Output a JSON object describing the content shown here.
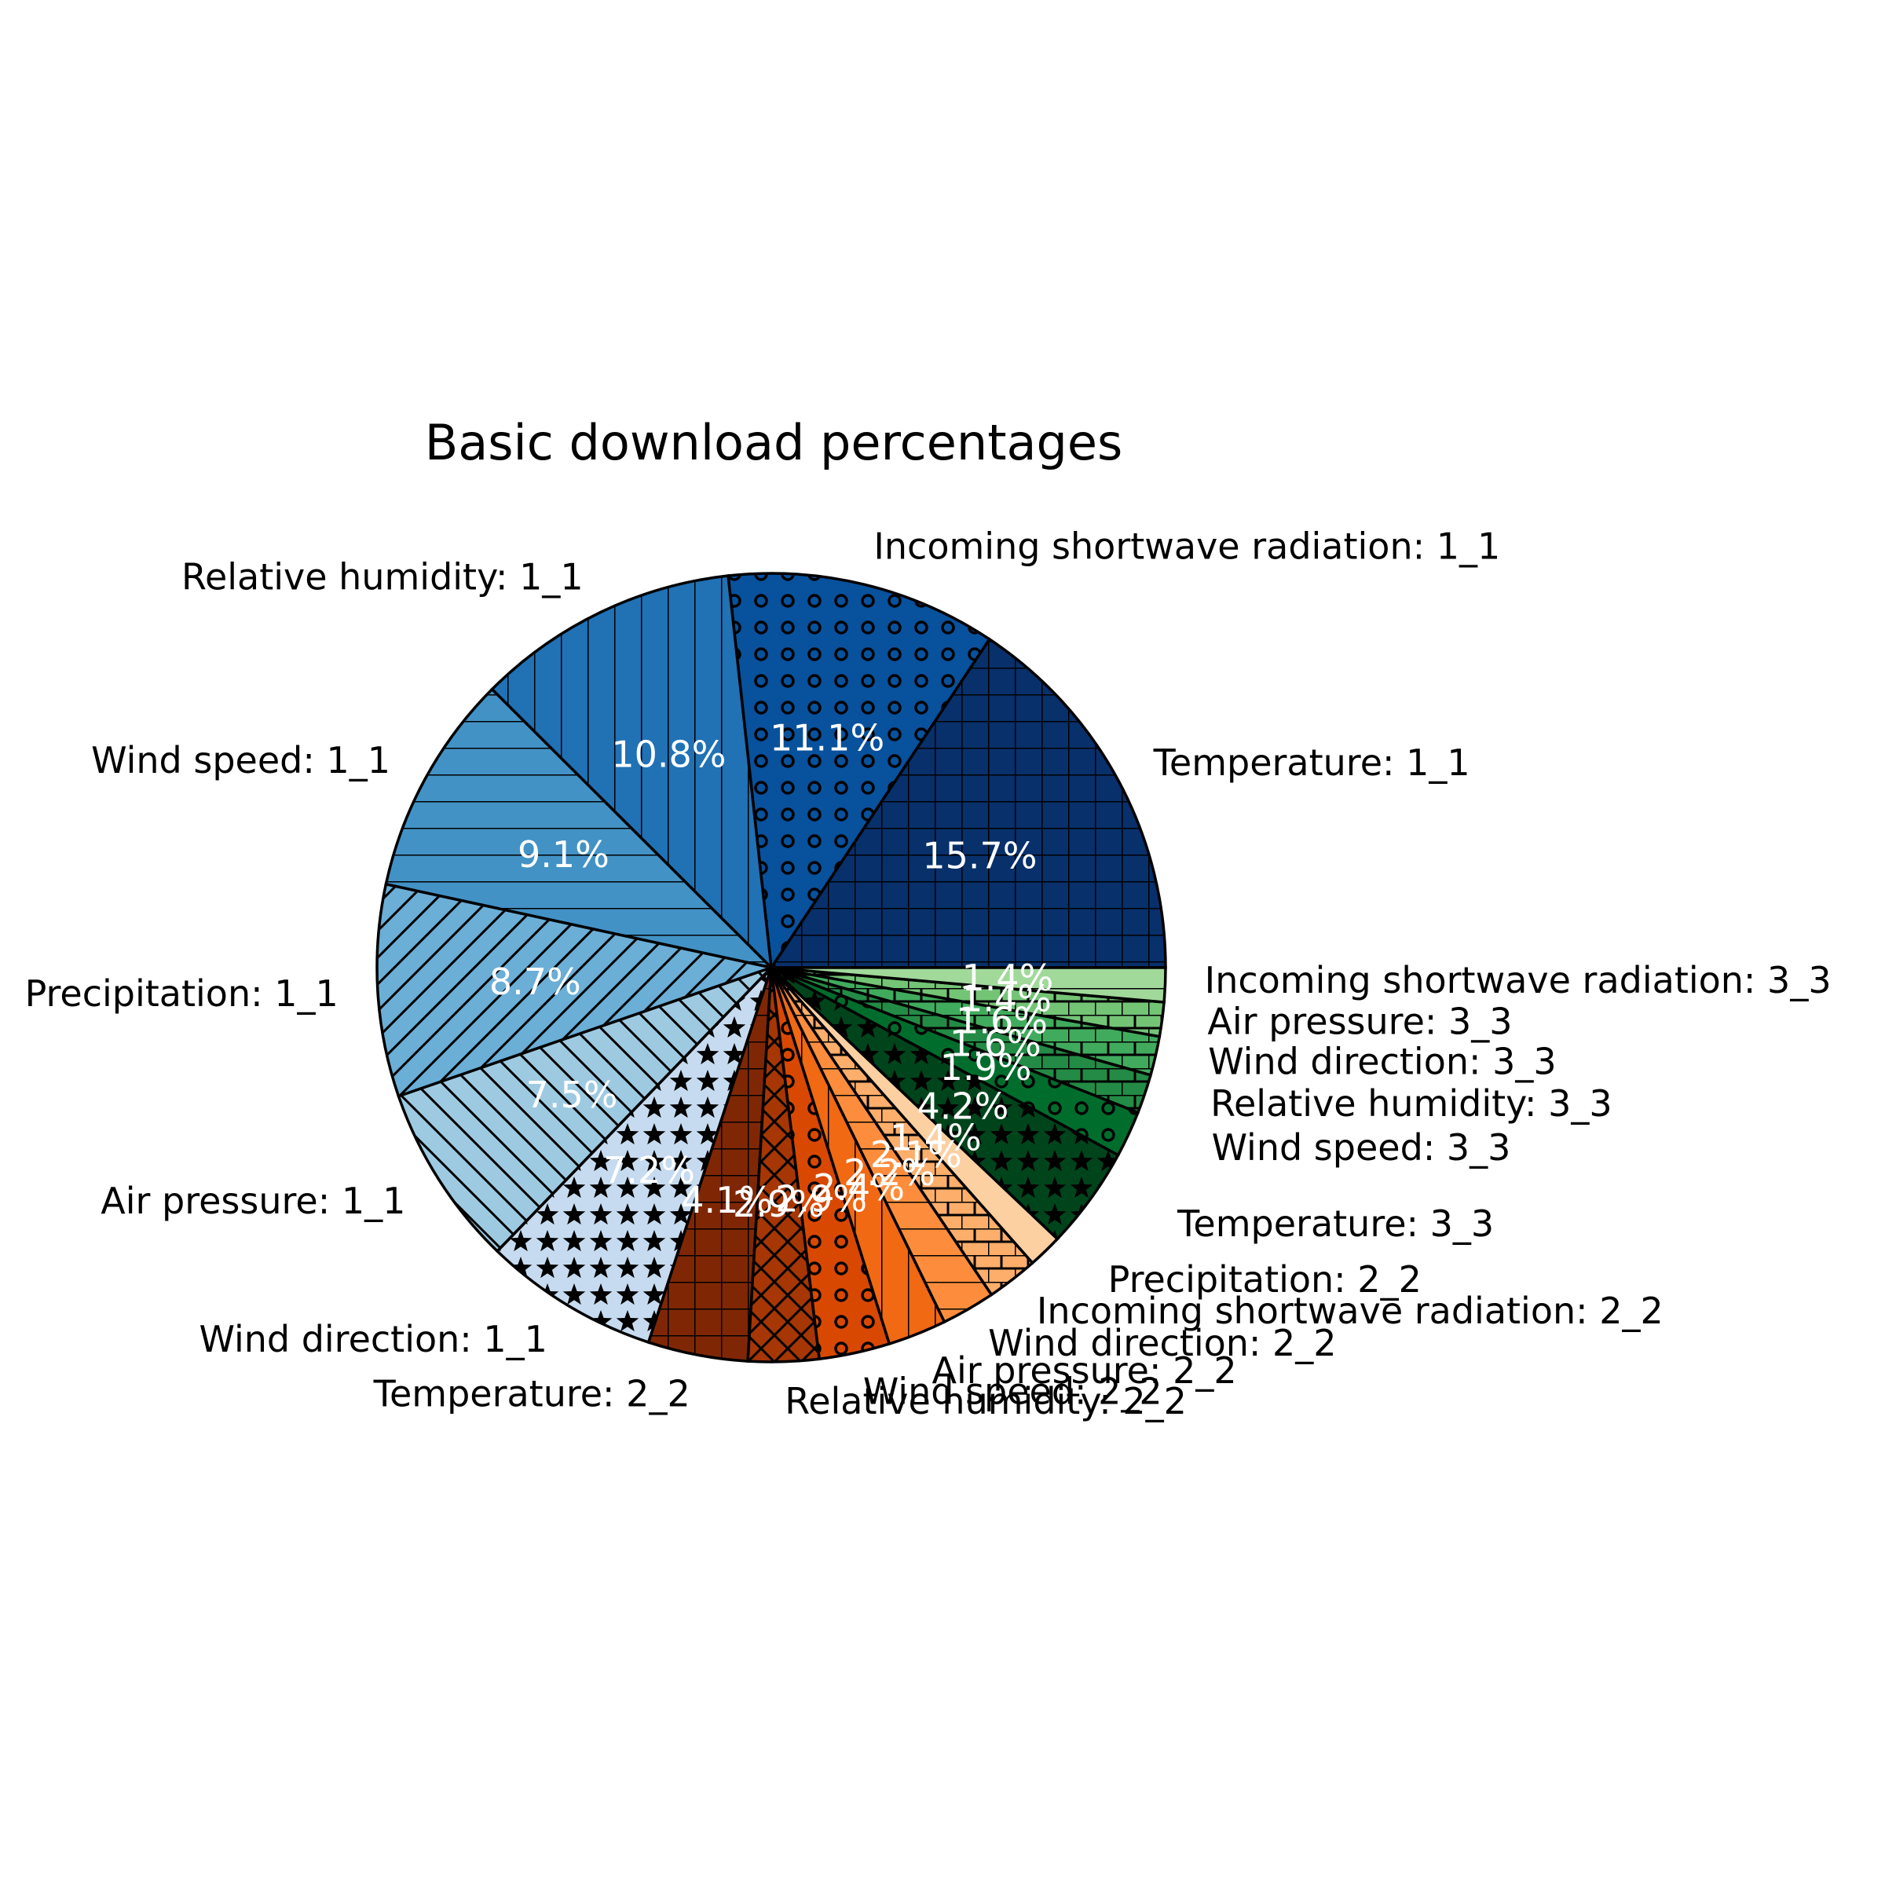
{
  "chart_data": {
    "type": "pie",
    "title": "Basic download percentages",
    "start_angle_deg": 0,
    "direction": "counterclockwise",
    "slices": [
      {
        "label": "Temperature: 1_1",
        "value": 15.7,
        "pct_label": "15.7%",
        "color": "#08306b",
        "hatch": "grid"
      },
      {
        "label": "Incoming shortwave radiation: 1_1",
        "value": 11.1,
        "pct_label": "11.1%",
        "color": "#08519c",
        "hatch": "circles"
      },
      {
        "label": "Relative humidity: 1_1",
        "value": 10.8,
        "pct_label": "10.8%",
        "color": "#2171b5",
        "hatch": "vertical"
      },
      {
        "label": "Wind speed: 1_1",
        "value": 9.1,
        "pct_label": "9.1%",
        "color": "#4292c6",
        "hatch": "horizontal"
      },
      {
        "label": "Precipitation: 1_1",
        "value": 8.7,
        "pct_label": "8.7%",
        "color": "#6baed6",
        "hatch": "diagonal"
      },
      {
        "label": "Air pressure: 1_1",
        "value": 7.5,
        "pct_label": "7.5%",
        "color": "#9ecae1",
        "hatch": "backdiagonal"
      },
      {
        "label": "Wind direction: 1_1",
        "value": 7.2,
        "pct_label": "7.2%",
        "color": "#c6dbef",
        "hatch": "stars"
      },
      {
        "label": "Temperature: 2_2",
        "value": 4.1,
        "pct_label": "4.1%",
        "color": "#7f2704",
        "hatch": "grid"
      },
      {
        "label": "Relative humidity: 2_2",
        "value": 2.9,
        "pct_label": "2.9%",
        "color": "#a63603",
        "hatch": "crosshatch"
      },
      {
        "label": "Wind speed: 2_2",
        "value": 2.9,
        "pct_label": "2.9%",
        "color": "#d94801",
        "hatch": "circles"
      },
      {
        "label": "Air pressure: 2_2",
        "value": 2.4,
        "pct_label": "2.4%",
        "color": "#f16913",
        "hatch": "vertical"
      },
      {
        "label": "Wind direction: 2_2",
        "value": 2.2,
        "pct_label": "2.2%",
        "color": "#fd8d3c",
        "hatch": "horizontal"
      },
      {
        "label": "Incoming shortwave radiation: 2_2",
        "value": 2.1,
        "pct_label": "2.1%",
        "color": "#fdae6b",
        "hatch": "bricks"
      },
      {
        "label": "Precipitation: 2_2",
        "value": 1.4,
        "pct_label": "1.4%",
        "color": "#fdd0a2",
        "hatch": "none"
      },
      {
        "label": "Temperature: 3_3",
        "value": 4.2,
        "pct_label": "4.2%",
        "color": "#00441b",
        "hatch": "stars"
      },
      {
        "label": "Wind speed: 3_3",
        "value": 1.9,
        "pct_label": "1.9%",
        "color": "#006d2c",
        "hatch": "circles"
      },
      {
        "label": "Relative humidity: 3_3",
        "value": 1.6,
        "pct_label": "1.6%",
        "color": "#238b45",
        "hatch": "bricks"
      },
      {
        "label": "Wind direction: 3_3",
        "value": 1.6,
        "pct_label": "1.6%",
        "color": "#41ab5d",
        "hatch": "bricks"
      },
      {
        "label": "Air pressure: 3_3",
        "value": 1.4,
        "pct_label": "1.4%",
        "color": "#74c476",
        "hatch": "bricks"
      },
      {
        "label": "Incoming shortwave radiation: 3_3",
        "value": 1.4,
        "pct_label": "1.4%",
        "color": "#a1d99b",
        "hatch": "horizontal"
      }
    ]
  }
}
